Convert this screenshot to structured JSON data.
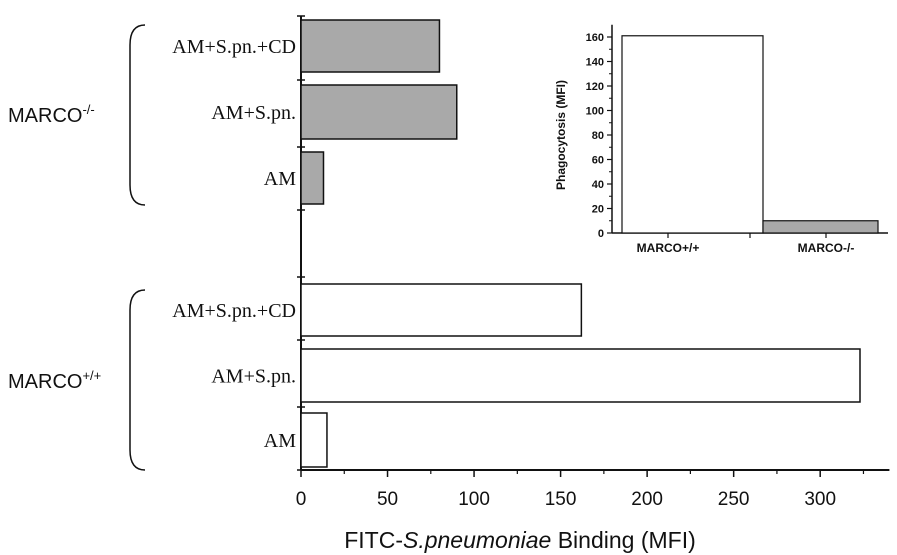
{
  "chart_data": [
    {
      "type": "bar",
      "orientation": "horizontal",
      "xlabel_prefix": "FITC-",
      "xlabel_italic": "S.pneumoniae",
      "xlabel_suffix": " Binding (MFI)",
      "ylabel": "",
      "xlim": [
        0,
        340
      ],
      "xticks": [
        0,
        50,
        100,
        150,
        200,
        250,
        300
      ],
      "groups": [
        {
          "name": "MARCO-/-",
          "label_base": "MARCO",
          "label_sup": "-/-",
          "fill": "#a9a9a9",
          "categories": [
            "AM+S.pn.+CD",
            "AM+S.pn.",
            "AM"
          ],
          "values": [
            80,
            90,
            13
          ]
        },
        {
          "name": "MARCO+/+",
          "label_base": "MARCO",
          "label_sup": "+/+",
          "fill": "#ffffff",
          "categories": [
            "AM+S.pn.+CD",
            "AM+S.pn.",
            "AM"
          ],
          "values": [
            162,
            323,
            15
          ]
        }
      ],
      "grid": false
    },
    {
      "type": "bar",
      "orientation": "vertical",
      "inset": true,
      "ylabel": "Phagocytosis (MFI)",
      "ylim": [
        0,
        170
      ],
      "yticks": [
        0,
        20,
        40,
        60,
        80,
        100,
        120,
        140,
        160
      ],
      "categories": [
        "MARCO+/+",
        "MARCO-/-"
      ],
      "values": [
        161,
        10
      ],
      "fills": [
        "#ffffff",
        "#a9a9a9"
      ],
      "grid": false
    }
  ]
}
